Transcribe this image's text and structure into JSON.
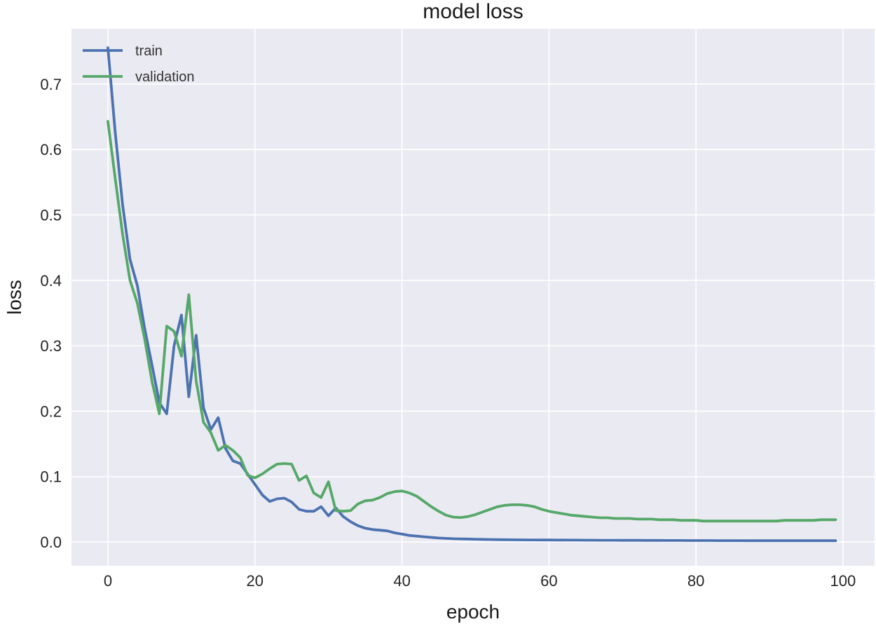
{
  "chart_data": {
    "type": "line",
    "title": "model loss",
    "xlabel": "epoch",
    "ylabel": "loss",
    "xlim": [
      -4.96,
      104.3
    ],
    "ylim": [
      -0.0364,
      0.7846
    ],
    "grid": true,
    "legend_position": "upper-left",
    "legend": [
      "train",
      "validation"
    ],
    "colors": {
      "plot_bg": "#eaeaf2",
      "grid": "#ffffff",
      "figure_bg": "#ffffff",
      "train": "#4c72b0",
      "validation": "#55a868"
    },
    "xticks": [
      {
        "value": 0,
        "label": "0"
      },
      {
        "value": 20,
        "label": "20"
      },
      {
        "value": 40,
        "label": "40"
      },
      {
        "value": 60,
        "label": "60"
      },
      {
        "value": 80,
        "label": "80"
      },
      {
        "value": 100,
        "label": "100"
      }
    ],
    "yticks": [
      {
        "value": 0.0,
        "label": "0.0"
      },
      {
        "value": 0.1,
        "label": "0.1"
      },
      {
        "value": 0.2,
        "label": "0.2"
      },
      {
        "value": 0.3,
        "label": "0.3"
      },
      {
        "value": 0.4,
        "label": "0.4"
      },
      {
        "value": 0.5,
        "label": "0.5"
      },
      {
        "value": 0.6,
        "label": "0.6"
      },
      {
        "value": 0.7,
        "label": "0.7"
      }
    ],
    "x": [
      0,
      1,
      2,
      3,
      4,
      5,
      6,
      7,
      8,
      9,
      10,
      11,
      12,
      13,
      14,
      15,
      16,
      17,
      18,
      19,
      20,
      21,
      22,
      23,
      24,
      25,
      26,
      27,
      28,
      29,
      30,
      31,
      32,
      33,
      34,
      35,
      36,
      37,
      38,
      39,
      40,
      41,
      42,
      43,
      44,
      45,
      46,
      47,
      48,
      49,
      50,
      51,
      52,
      53,
      54,
      55,
      56,
      57,
      58,
      59,
      60,
      61,
      62,
      63,
      64,
      65,
      66,
      67,
      68,
      69,
      70,
      71,
      72,
      73,
      74,
      75,
      76,
      77,
      78,
      79,
      80,
      81,
      82,
      83,
      84,
      85,
      86,
      87,
      88,
      89,
      90,
      91,
      92,
      93,
      94,
      95,
      96,
      97,
      98,
      99
    ],
    "series": [
      {
        "name": "train",
        "color": "#4c72b0",
        "values": [
          0.7556,
          0.625,
          0.515,
          0.432,
          0.392,
          0.326,
          0.27,
          0.213,
          0.196,
          0.3,
          0.347,
          0.222,
          0.316,
          0.205,
          0.172,
          0.19,
          0.143,
          0.124,
          0.12,
          0.104,
          0.088,
          0.072,
          0.062,
          0.066,
          0.067,
          0.061,
          0.05,
          0.047,
          0.047,
          0.054,
          0.04,
          0.052,
          0.039,
          0.031,
          0.025,
          0.021,
          0.019,
          0.018,
          0.017,
          0.014,
          0.012,
          0.01,
          0.009,
          0.008,
          0.007,
          0.006,
          0.0055,
          0.005,
          0.0048,
          0.0045,
          0.0042,
          0.004,
          0.0038,
          0.0036,
          0.0035,
          0.0034,
          0.0033,
          0.0032,
          0.0031,
          0.003,
          0.003,
          0.0029,
          0.0029,
          0.0028,
          0.0028,
          0.0027,
          0.0027,
          0.0026,
          0.0026,
          0.0026,
          0.0025,
          0.0025,
          0.0025,
          0.0024,
          0.0024,
          0.0024,
          0.0023,
          0.0023,
          0.0023,
          0.0022,
          0.0022,
          0.0022,
          0.0022,
          0.0021,
          0.0021,
          0.0021,
          0.0021,
          0.002,
          0.002,
          0.002,
          0.002,
          0.002,
          0.002,
          0.002,
          0.002,
          0.002,
          0.002,
          0.002,
          0.002,
          0.002
        ]
      },
      {
        "name": "validation",
        "color": "#55a868",
        "values": [
          0.643,
          0.555,
          0.47,
          0.4,
          0.365,
          0.31,
          0.245,
          0.196,
          0.33,
          0.322,
          0.284,
          0.378,
          0.246,
          0.183,
          0.167,
          0.14,
          0.148,
          0.14,
          0.129,
          0.102,
          0.098,
          0.104,
          0.112,
          0.119,
          0.12,
          0.119,
          0.094,
          0.101,
          0.075,
          0.068,
          0.092,
          0.048,
          0.047,
          0.048,
          0.058,
          0.063,
          0.064,
          0.068,
          0.074,
          0.077,
          0.078,
          0.075,
          0.07,
          0.062,
          0.054,
          0.047,
          0.041,
          0.038,
          0.0375,
          0.039,
          0.042,
          0.046,
          0.05,
          0.054,
          0.056,
          0.057,
          0.057,
          0.056,
          0.054,
          0.05,
          0.047,
          0.045,
          0.043,
          0.041,
          0.04,
          0.039,
          0.038,
          0.037,
          0.037,
          0.036,
          0.036,
          0.036,
          0.035,
          0.035,
          0.035,
          0.034,
          0.034,
          0.034,
          0.033,
          0.033,
          0.033,
          0.032,
          0.032,
          0.032,
          0.032,
          0.032,
          0.032,
          0.032,
          0.032,
          0.032,
          0.032,
          0.032,
          0.033,
          0.033,
          0.033,
          0.033,
          0.033,
          0.034,
          0.034,
          0.034
        ]
      }
    ]
  }
}
